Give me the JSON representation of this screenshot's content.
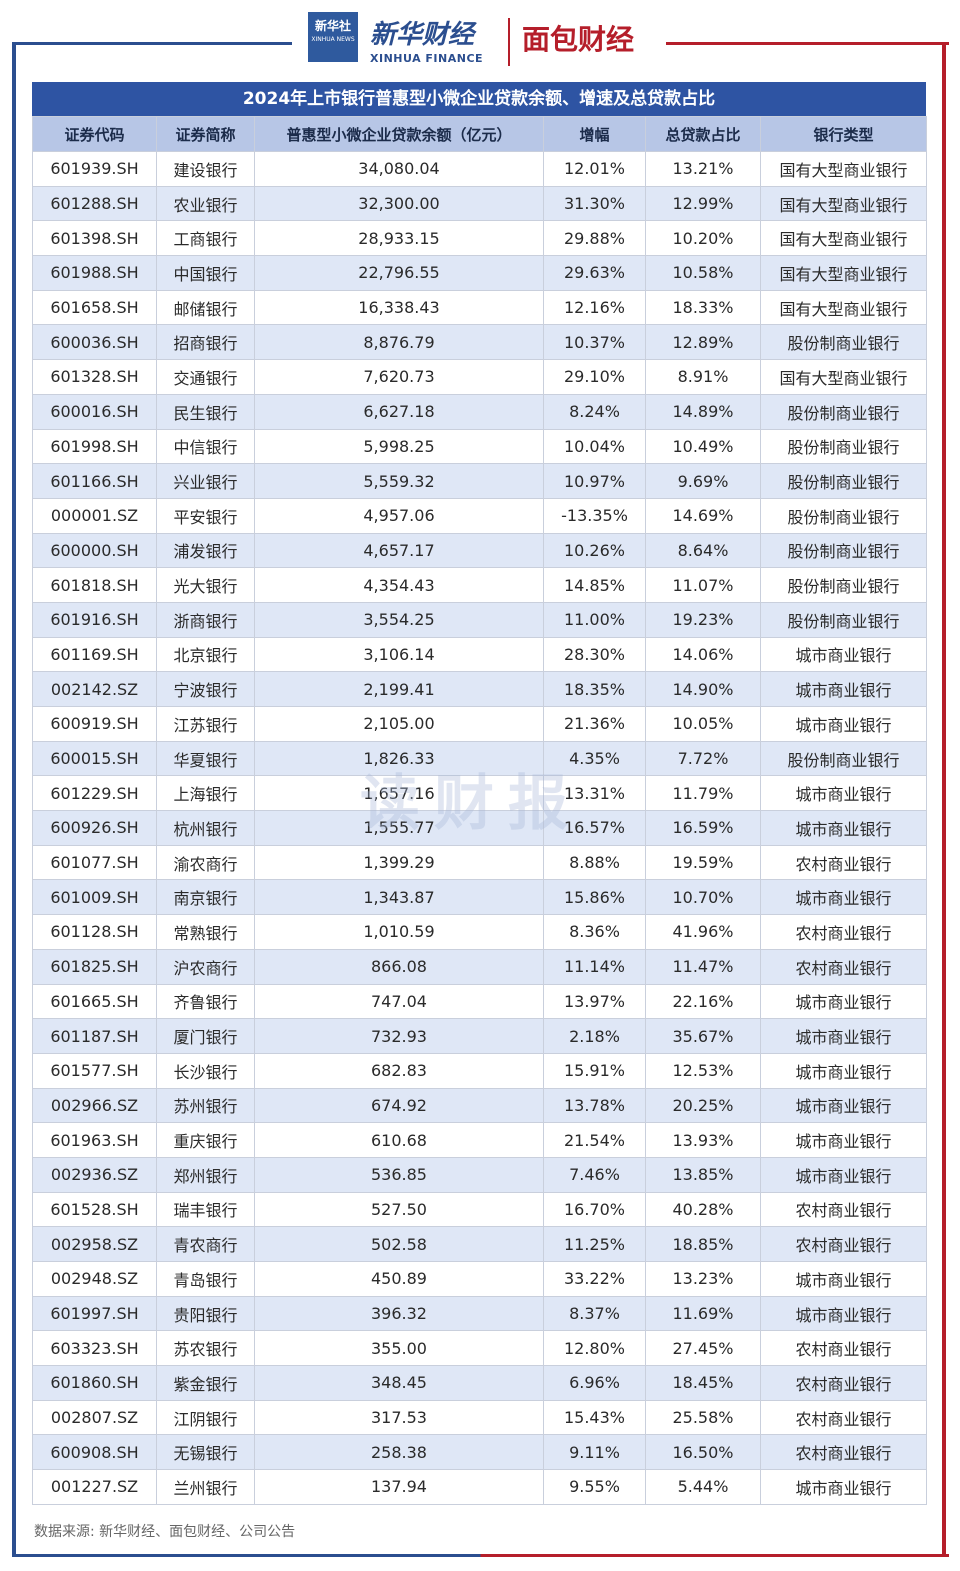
{
  "header": {
    "xinhua_logo_text": "新华社",
    "xinhua_logo_sub": "XINHUA NEWS",
    "brand_cn": "新华财经",
    "brand_en": "XINHUA FINANCE",
    "partner_brand": "面包财经"
  },
  "table": {
    "title": "2024年上市银行普惠型小微企业贷款余额、增速及总贷款占比",
    "columns": [
      "证券代码",
      "证券简称",
      "普惠型小微企业贷款余额（亿元）",
      "增幅",
      "总贷款占比",
      "银行类型"
    ],
    "rows": [
      [
        "601939.SH",
        "建设银行",
        "34,080.04",
        "12.01%",
        "13.21%",
        "国有大型商业银行"
      ],
      [
        "601288.SH",
        "农业银行",
        "32,300.00",
        "31.30%",
        "12.99%",
        "国有大型商业银行"
      ],
      [
        "601398.SH",
        "工商银行",
        "28,933.15",
        "29.88%",
        "10.20%",
        "国有大型商业银行"
      ],
      [
        "601988.SH",
        "中国银行",
        "22,796.55",
        "29.63%",
        "10.58%",
        "国有大型商业银行"
      ],
      [
        "601658.SH",
        "邮储银行",
        "16,338.43",
        "12.16%",
        "18.33%",
        "国有大型商业银行"
      ],
      [
        "600036.SH",
        "招商银行",
        "8,876.79",
        "10.37%",
        "12.89%",
        "股份制商业银行"
      ],
      [
        "601328.SH",
        "交通银行",
        "7,620.73",
        "29.10%",
        "8.91%",
        "国有大型商业银行"
      ],
      [
        "600016.SH",
        "民生银行",
        "6,627.18",
        "8.24%",
        "14.89%",
        "股份制商业银行"
      ],
      [
        "601998.SH",
        "中信银行",
        "5,998.25",
        "10.04%",
        "10.49%",
        "股份制商业银行"
      ],
      [
        "601166.SH",
        "兴业银行",
        "5,559.32",
        "10.97%",
        "9.69%",
        "股份制商业银行"
      ],
      [
        "000001.SZ",
        "平安银行",
        "4,957.06",
        "-13.35%",
        "14.69%",
        "股份制商业银行"
      ],
      [
        "600000.SH",
        "浦发银行",
        "4,657.17",
        "10.26%",
        "8.64%",
        "股份制商业银行"
      ],
      [
        "601818.SH",
        "光大银行",
        "4,354.43",
        "14.85%",
        "11.07%",
        "股份制商业银行"
      ],
      [
        "601916.SH",
        "浙商银行",
        "3,554.25",
        "11.00%",
        "19.23%",
        "股份制商业银行"
      ],
      [
        "601169.SH",
        "北京银行",
        "3,106.14",
        "28.30%",
        "14.06%",
        "城市商业银行"
      ],
      [
        "002142.SZ",
        "宁波银行",
        "2,199.41",
        "18.35%",
        "14.90%",
        "城市商业银行"
      ],
      [
        "600919.SH",
        "江苏银行",
        "2,105.00",
        "21.36%",
        "10.05%",
        "城市商业银行"
      ],
      [
        "600015.SH",
        "华夏银行",
        "1,826.33",
        "4.35%",
        "7.72%",
        "股份制商业银行"
      ],
      [
        "601229.SH",
        "上海银行",
        "1,657.16",
        "13.31%",
        "11.79%",
        "城市商业银行"
      ],
      [
        "600926.SH",
        "杭州银行",
        "1,555.77",
        "16.57%",
        "16.59%",
        "城市商业银行"
      ],
      [
        "601077.SH",
        "渝农商行",
        "1,399.29",
        "8.88%",
        "19.59%",
        "农村商业银行"
      ],
      [
        "601009.SH",
        "南京银行",
        "1,343.87",
        "15.86%",
        "10.70%",
        "城市商业银行"
      ],
      [
        "601128.SH",
        "常熟银行",
        "1,010.59",
        "8.36%",
        "41.96%",
        "农村商业银行"
      ],
      [
        "601825.SH",
        "沪农商行",
        "866.08",
        "11.14%",
        "11.47%",
        "农村商业银行"
      ],
      [
        "601665.SH",
        "齐鲁银行",
        "747.04",
        "13.97%",
        "22.16%",
        "城市商业银行"
      ],
      [
        "601187.SH",
        "厦门银行",
        "732.93",
        "2.18%",
        "35.67%",
        "城市商业银行"
      ],
      [
        "601577.SH",
        "长沙银行",
        "682.83",
        "15.91%",
        "12.53%",
        "城市商业银行"
      ],
      [
        "002966.SZ",
        "苏州银行",
        "674.92",
        "13.78%",
        "20.25%",
        "城市商业银行"
      ],
      [
        "601963.SH",
        "重庆银行",
        "610.68",
        "21.54%",
        "13.93%",
        "城市商业银行"
      ],
      [
        "002936.SZ",
        "郑州银行",
        "536.85",
        "7.46%",
        "13.85%",
        "城市商业银行"
      ],
      [
        "601528.SH",
        "瑞丰银行",
        "527.50",
        "16.70%",
        "40.28%",
        "农村商业银行"
      ],
      [
        "002958.SZ",
        "青农商行",
        "502.58",
        "11.25%",
        "18.85%",
        "农村商业银行"
      ],
      [
        "002948.SZ",
        "青岛银行",
        "450.89",
        "33.22%",
        "13.23%",
        "城市商业银行"
      ],
      [
        "601997.SH",
        "贵阳银行",
        "396.32",
        "8.37%",
        "11.69%",
        "城市商业银行"
      ],
      [
        "603323.SH",
        "苏农银行",
        "355.00",
        "12.80%",
        "27.45%",
        "农村商业银行"
      ],
      [
        "601860.SH",
        "紫金银行",
        "348.45",
        "6.96%",
        "18.45%",
        "农村商业银行"
      ],
      [
        "002807.SZ",
        "江阴银行",
        "317.53",
        "15.43%",
        "25.58%",
        "农村商业银行"
      ],
      [
        "600908.SH",
        "无锡银行",
        "258.38",
        "9.11%",
        "16.50%",
        "农村商业银行"
      ],
      [
        "001227.SZ",
        "兰州银行",
        "137.94",
        "9.55%",
        "5.44%",
        "城市商业银行"
      ]
    ]
  },
  "watermark": "读财报",
  "source": "数据来源: 新华财经、面包财经、公司公告",
  "colors": {
    "title_bg": "#2e54a3",
    "header_bg": "#b7c6e6",
    "row_alt_bg": "#dfe7f6",
    "frame_blue": "#2b4e8f",
    "frame_red": "#b51e2a"
  }
}
